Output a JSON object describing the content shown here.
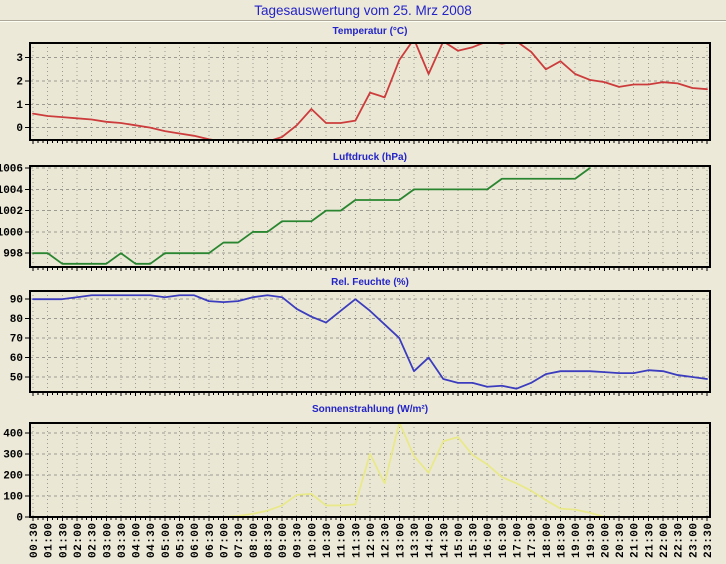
{
  "page": {
    "title": "Tagesauswertung vom 25. Mrz 2008",
    "background_color": "#ece9d8",
    "title_color": "#2323c8"
  },
  "style": {
    "plot_background": "#eae8d5",
    "grid_color": "#9a9a91",
    "axis_color": "#000000",
    "tick_label_color": "#000000"
  },
  "x_axis": {
    "labels": [
      "00:30",
      "01:00",
      "01:30",
      "02:00",
      "02:30",
      "03:00",
      "03:30",
      "04:00",
      "04:30",
      "05:00",
      "05:30",
      "06:00",
      "06:30",
      "07:00",
      "07:30",
      "08:00",
      "08:30",
      "09:00",
      "09:30",
      "10:00",
      "10:30",
      "11:00",
      "11:30",
      "12:00",
      "12:30",
      "13:00",
      "13:30",
      "14:00",
      "14:30",
      "15:00",
      "15:30",
      "16:00",
      "16:30",
      "17:00",
      "17:30",
      "18:00",
      "18:30",
      "19:00",
      "19:30",
      "20:00",
      "20:30",
      "21:00",
      "21:30",
      "22:00",
      "22:30",
      "23:00",
      "23:30"
    ],
    "label_rotation_deg": -90
  },
  "chart_data": [
    {
      "type": "line",
      "title": "Temperatur (°C)",
      "line_color": "#cd3c3c",
      "y_ticks": [
        0,
        1,
        2,
        3
      ],
      "ylim": [
        -0.53,
        3.63
      ],
      "grid": true,
      "values": [
        0.6,
        0.5,
        0.45,
        0.4,
        0.35,
        0.25,
        0.2,
        0.1,
        0,
        -0.15,
        -0.25,
        -0.35,
        -0.5,
        -0.6,
        -0.65,
        -0.65,
        -0.6,
        -0.4,
        0.1,
        0.8,
        0.2,
        0.2,
        0.3,
        1.5,
        1.3,
        2.9,
        3.8,
        2.3,
        3.7,
        3.3,
        3.45,
        3.7,
        3.6,
        3.7,
        3.25,
        2.5,
        2.85,
        2.3,
        2.05,
        1.95,
        1.75,
        1.85,
        1.85,
        1.95,
        1.9,
        1.7,
        1.65
      ]
    },
    {
      "type": "line",
      "title": "Luftdruck (hPa)",
      "line_color": "#2a8530",
      "y_ticks": [
        998,
        1000,
        1002,
        1004,
        1006
      ],
      "ylim": [
        996.7,
        1006.2
      ],
      "grid": true,
      "values": [
        998,
        998,
        997,
        997,
        997,
        997,
        998,
        997,
        997,
        998,
        998,
        998,
        998,
        999,
        999,
        1000,
        1000,
        1001,
        1001,
        1001,
        1002,
        1002,
        1003,
        1003,
        1003,
        1003,
        1004,
        1004,
        1004,
        1004,
        1004,
        1004,
        1005,
        1005,
        1005,
        1005,
        1005,
        1005,
        1006,
        null,
        null,
        null,
        null,
        null,
        null,
        null,
        null
      ]
    },
    {
      "type": "line",
      "title": "Rel. Feuchte (%)",
      "line_color": "#3c3cbe",
      "y_ticks": [
        50,
        60,
        70,
        80,
        90
      ],
      "ylim": [
        42.3,
        94.2
      ],
      "grid": true,
      "values": [
        90,
        90,
        90,
        91,
        92,
        92,
        92,
        92,
        92,
        91,
        92,
        92,
        89,
        88.5,
        89,
        91,
        92,
        91,
        85,
        81,
        78,
        84,
        90,
        84,
        77,
        70,
        53,
        60,
        49,
        47,
        47,
        45,
        45.5,
        44,
        47,
        51.5,
        53,
        53,
        53,
        52.5,
        52,
        52,
        53.5,
        53,
        51,
        50,
        49
      ]
    },
    {
      "type": "line",
      "title": "Sonnenstrahlung (W/m²)",
      "line_color": "#e9e98a",
      "y_ticks": [
        0,
        100,
        200,
        300,
        400
      ],
      "ylim": [
        0,
        447
      ],
      "grid": true,
      "values": [
        0,
        0,
        0,
        0,
        0,
        0,
        0,
        0,
        0,
        0,
        0,
        0,
        0,
        0,
        5,
        15,
        30,
        55,
        105,
        110,
        55,
        55,
        60,
        300,
        160,
        450,
        290,
        210,
        360,
        380,
        295,
        250,
        190,
        160,
        125,
        80,
        40,
        35,
        20,
        0,
        null,
        null,
        null,
        null,
        null,
        null,
        null
      ]
    }
  ]
}
